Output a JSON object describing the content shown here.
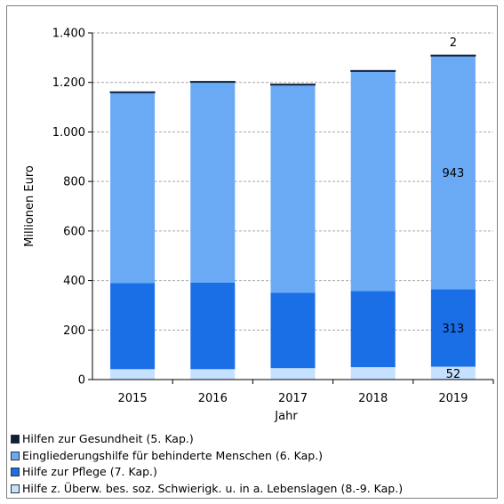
{
  "chart_data": {
    "type": "bar",
    "stacked": true,
    "categories": [
      "2015",
      "2016",
      "2017",
      "2018",
      "2019"
    ],
    "xlabel": "Jahr",
    "ylabel": "Millionen Euro",
    "ylim": [
      0,
      1400
    ],
    "yticks": [
      0,
      200,
      400,
      600,
      800,
      1000,
      1200,
      1400
    ],
    "ytick_labels": [
      "0",
      "200",
      "400",
      "600",
      "800",
      "1.000",
      "1.200",
      "1.400"
    ],
    "grid": "horizontal dashed",
    "legend_position": "bottom",
    "series": [
      {
        "name": "Hilfe z. Überw. bes. soz. Schwierigk. u. in a. Lebenslagen (8.-9. Kap.)",
        "color": "#c6e0ff",
        "values": [
          42,
          42,
          46,
          50,
          52
        ]
      },
      {
        "name": "Hilfe zur Pflege (7. Kap.)",
        "color": "#1a6ee6",
        "values": [
          348,
          350,
          305,
          308,
          313
        ]
      },
      {
        "name": "Eingliederungshilfe für behinderte Menschen (6. Kap.)",
        "color": "#6aaaf5",
        "values": [
          770,
          810,
          840,
          888,
          943
        ]
      },
      {
        "name": "Hilfen zur Gesundheit (5. Kap.)",
        "color": "#0d1f3c",
        "values": [
          2,
          2,
          2,
          2,
          2
        ]
      }
    ],
    "data_labels": [
      {
        "category": "2019",
        "series": 0,
        "text": "52"
      },
      {
        "category": "2019",
        "series": 1,
        "text": "313"
      },
      {
        "category": "2019",
        "series": 2,
        "text": "943"
      },
      {
        "category": "2019",
        "series": 3,
        "text": "2"
      }
    ]
  },
  "legend_order": [
    3,
    2,
    1,
    0
  ]
}
